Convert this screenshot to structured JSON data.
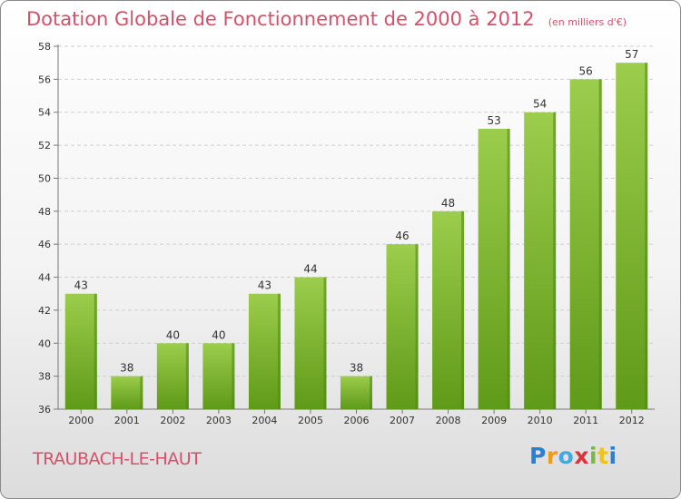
{
  "header": {
    "title": "Dotation Globale de Fonctionnement de 2000 à 2012",
    "unit": "(en milliers d'€)"
  },
  "footer": {
    "city": "TRAUBACH-LE-HAUT",
    "logo": "Proxiti"
  },
  "colors": {
    "accent": "#d5506a",
    "bar_top": "#9ccd4c",
    "bar_bottom": "#5f9a18",
    "bar_side": "#4e8710"
  },
  "chart_data": {
    "type": "bar",
    "title": "Dotation Globale de Fonctionnement de 2000 à 2012",
    "subtitle": "(en milliers d'€)",
    "xlabel": "",
    "ylabel": "",
    "categories": [
      "2000",
      "2001",
      "2002",
      "2003",
      "2004",
      "2005",
      "2006",
      "2007",
      "2008",
      "2009",
      "2010",
      "2011",
      "2012"
    ],
    "values": [
      43,
      38,
      40,
      40,
      43,
      44,
      38,
      46,
      48,
      53,
      54,
      56,
      57
    ],
    "ylim": [
      36,
      58
    ],
    "yticks": [
      36,
      38,
      40,
      42,
      44,
      46,
      48,
      50,
      52,
      54,
      56,
      58
    ],
    "grid": true,
    "data_labels": true
  }
}
